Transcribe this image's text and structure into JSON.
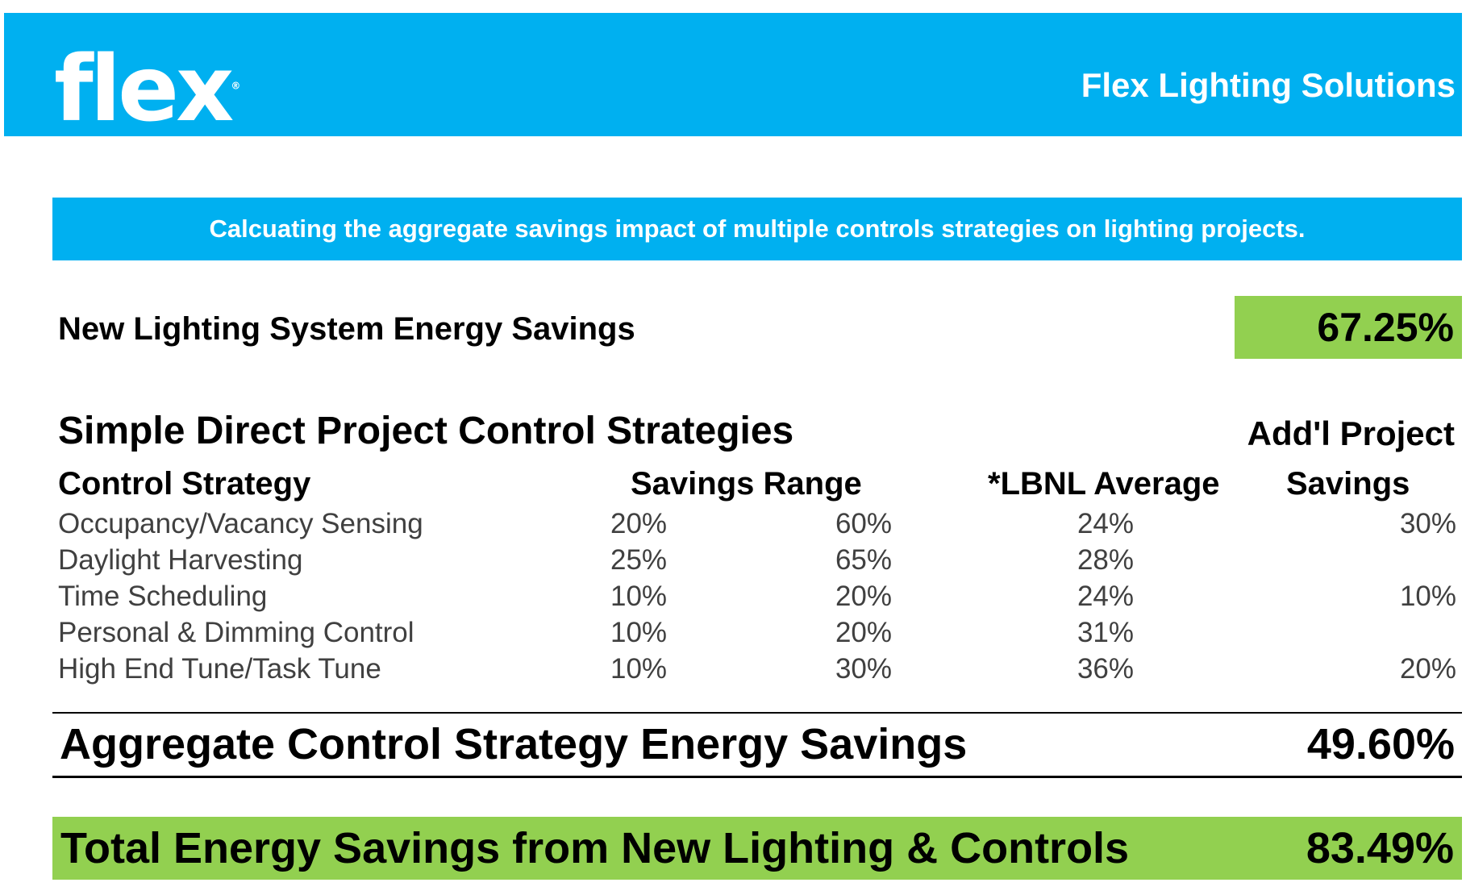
{
  "header": {
    "logo_text": "flex",
    "title": "Flex Lighting Solutions",
    "color": "#00b0f0"
  },
  "banner": {
    "text": "Calcuating the aggregate savings impact of multiple controls strategies on lighting projects."
  },
  "new_lighting": {
    "label": "New Lighting System Energy Savings",
    "value": "67.25%"
  },
  "strategies": {
    "title": "Simple Direct Project Control Strategies",
    "columns": {
      "strategy": "Control Strategy",
      "range": "Savings Range",
      "lbnl": "*LBNL Average",
      "addl_line1": "Add'l Project",
      "addl_line2": "Savings"
    },
    "rows": [
      {
        "name": "Occupancy/Vacancy Sensing",
        "low": "20%",
        "high": "60%",
        "lbnl": "24%",
        "addl": "30%"
      },
      {
        "name": "Daylight Harvesting",
        "low": "25%",
        "high": "65%",
        "lbnl": "28%",
        "addl": ""
      },
      {
        "name": "Time Scheduling",
        "low": "10%",
        "high": "20%",
        "lbnl": "24%",
        "addl": "10%"
      },
      {
        "name": "Personal & Dimming Control",
        "low": "10%",
        "high": "20%",
        "lbnl": "31%",
        "addl": ""
      },
      {
        "name": "High End Tune/Task Tune",
        "low": "10%",
        "high": "30%",
        "lbnl": "36%",
        "addl": "20%"
      }
    ]
  },
  "aggregate": {
    "label": "Aggregate Control Strategy Energy Savings",
    "value": "49.60%"
  },
  "total": {
    "label": "Total  Energy Savings from New Lighting  & Controls",
    "value": "83.49%",
    "color": "#92d050"
  }
}
